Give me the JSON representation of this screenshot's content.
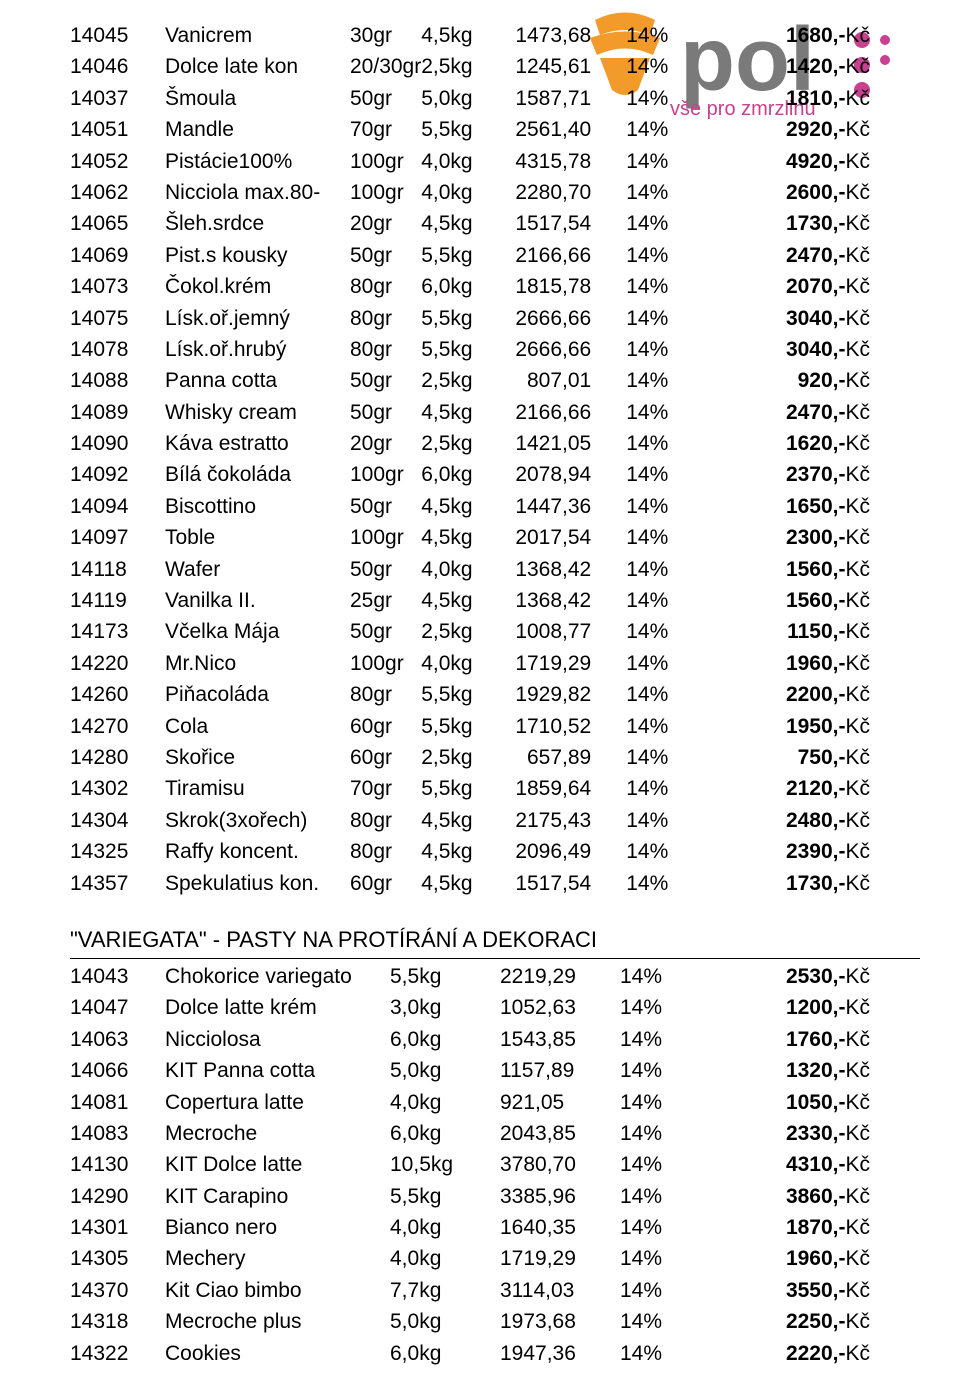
{
  "logo": {
    "text_left": "p",
    "text_mid": "o",
    "text_right": "l",
    "tagline": "vše pro zmrzlinu",
    "color_orange": "#f29a2a",
    "color_text": "#7a7a7a",
    "color_dot": "#c7418f",
    "color_tag": "#c7418f"
  },
  "currency_suffix": "Kč",
  "table1": {
    "rows": [
      {
        "code": "14045",
        "name": "Vanicrem",
        "dose": "30gr",
        "pack": "4,5kg",
        "net": "1473,68",
        "vat": "14%",
        "gross": "1680,-"
      },
      {
        "code": "14046",
        "name": "Dolce late kon",
        "dose": "20/30gr",
        "pack": "2,5kg",
        "net": "1245,61",
        "vat": "14%",
        "gross": "1420,-"
      },
      {
        "code": "14037",
        "name": "Šmoula",
        "dose": "50gr",
        "pack": "5,0kg",
        "net": "1587,71",
        "vat": "14%",
        "gross": "1810,-"
      },
      {
        "code": "14051",
        "name": "Mandle",
        "dose": "70gr",
        "pack": "5,5kg",
        "net": "2561,40",
        "vat": "14%",
        "gross": "2920,-"
      },
      {
        "code": "14052",
        "name": "Pistácie100%",
        "dose": "100gr",
        "pack": "4,0kg",
        "net": "4315,78",
        "vat": "14%",
        "gross": "4920,-"
      },
      {
        "code": "14062",
        "name": "Nicciola max.80-",
        "dose": "100gr",
        "pack": "4,0kg",
        "net": "2280,70",
        "vat": "14%",
        "gross": "2600,-"
      },
      {
        "code": "14065",
        "name": "Šleh.srdce",
        "dose": "20gr",
        "pack": "4,5kg",
        "net": "1517,54",
        "vat": "14%",
        "gross": "1730,-"
      },
      {
        "code": "14069",
        "name": "Pist.s kousky",
        "dose": "50gr",
        "pack": "5,5kg",
        "net": "2166,66",
        "vat": "14%",
        "gross": "2470,-"
      },
      {
        "code": "14073",
        "name": "Čokol.krém",
        "dose": "80gr",
        "pack": "6,0kg",
        "net": "1815,78",
        "vat": "14%",
        "gross": "2070,-"
      },
      {
        "code": "14075",
        "name": "Lísk.oř.jemný",
        "dose": "80gr",
        "pack": "5,5kg",
        "net": "2666,66",
        "vat": "14%",
        "gross": "3040,-"
      },
      {
        "code": "14078",
        "name": "Lísk.oř.hrubý",
        "dose": "80gr",
        "pack": "5,5kg",
        "net": "2666,66",
        "vat": "14%",
        "gross": "3040,-"
      },
      {
        "code": "14088",
        "name": "Panna cotta",
        "dose": "50gr",
        "pack": "2,5kg",
        "net": "807,01",
        "vat": "14%",
        "gross": "920,-"
      },
      {
        "code": "14089",
        "name": "Whisky cream",
        "dose": "50gr",
        "pack": "4,5kg",
        "net": "2166,66",
        "vat": "14%",
        "gross": "2470,-"
      },
      {
        "code": "14090",
        "name": "Káva estratto",
        "dose": "20gr",
        "pack": "2,5kg",
        "net": "1421,05",
        "vat": "14%",
        "gross": "1620,-"
      },
      {
        "code": "14092",
        "name": "Bílá čokoláda",
        "dose": "100gr",
        "pack": "6,0kg",
        "net": "2078,94",
        "vat": "14%",
        "gross": "2370,-"
      },
      {
        "code": "14094",
        "name": "Biscottino",
        "dose": "50gr",
        "pack": "4,5kg",
        "net": "1447,36",
        "vat": "14%",
        "gross": "1650,-"
      },
      {
        "code": "14097",
        "name": "Toble",
        "dose": "100gr",
        "pack": "4,5kg",
        "net": "2017,54",
        "vat": "14%",
        "gross": "2300,-"
      },
      {
        "code": "14118",
        "name": "Wafer",
        "dose": "50gr",
        "pack": "4,0kg",
        "net": "1368,42",
        "vat": "14%",
        "gross": "1560,-"
      },
      {
        "code": "14119",
        "name": "Vanilka II.",
        "dose": "25gr",
        "pack": "4,5kg",
        "net": "1368,42",
        "vat": "14%",
        "gross": "1560,-"
      },
      {
        "code": "14173",
        "name": "Včelka Mája",
        "dose": "50gr",
        "pack": "2,5kg",
        "net": "1008,77",
        "vat": "14%",
        "gross": "1150,-"
      },
      {
        "code": "14220",
        "name": "Mr.Nico",
        "dose": "100gr",
        "pack": "4,0kg",
        "net": "1719,29",
        "vat": "14%",
        "gross": "1960,-"
      },
      {
        "code": "14260",
        "name": "Piňacoláda",
        "dose": "80gr",
        "pack": "5,5kg",
        "net": "1929,82",
        "vat": "14%",
        "gross": "2200,-"
      },
      {
        "code": "14270",
        "name": "Cola",
        "dose": "60gr",
        "pack": "5,5kg",
        "net": "1710,52",
        "vat": "14%",
        "gross": "1950,-"
      },
      {
        "code": "14280",
        "name": "Skořice",
        "dose": "60gr",
        "pack": "2,5kg",
        "net": "657,89",
        "vat": "14%",
        "gross": "750,-"
      },
      {
        "code": "14302",
        "name": "Tiramisu",
        "dose": "70gr",
        "pack": "5,5kg",
        "net": "1859,64",
        "vat": "14%",
        "gross": "2120,-"
      },
      {
        "code": "14304",
        "name": "Skrok(3xořech)",
        "dose": "80gr",
        "pack": "4,5kg",
        "net": "2175,43",
        "vat": "14%",
        "gross": "2480,-"
      },
      {
        "code": "14325",
        "name": "Raffy koncent.",
        "dose": "80gr",
        "pack": "4,5kg",
        "net": "2096,49",
        "vat": "14%",
        "gross": "2390,-"
      },
      {
        "code": "14357",
        "name": "Spekulatius kon.",
        "dose": "60gr",
        "pack": "4,5kg",
        "net": "1517,54",
        "vat": "14%",
        "gross": "1730,-"
      }
    ]
  },
  "section2_title": "\"VARIEGATA\" - PASTY NA PROTÍRÁNÍ A DEKORACI",
  "table2": {
    "rows": [
      {
        "code": "14043",
        "name": "Chokorice variegato",
        "pack": "5,5kg",
        "net": "2219,29",
        "vat": "14%",
        "gross": "2530,-"
      },
      {
        "code": "14047",
        "name": "Dolce latte krém",
        "pack": "3,0kg",
        "net": "1052,63",
        "vat": "14%",
        "gross": "1200,-"
      },
      {
        "code": "14063",
        "name": "Nicciolosa",
        "pack": "6,0kg",
        "net": "1543,85",
        "vat": "14%",
        "gross": "1760,-"
      },
      {
        "code": "14066",
        "name": "KIT Panna cotta",
        "pack": "5,0kg",
        "net": "1157,89",
        "vat": "14%",
        "gross": "1320,-"
      },
      {
        "code": "14081",
        "name": "Copertura latte",
        "pack": "4,0kg",
        "net": "921,05",
        "vat": "14%",
        "gross": "1050,-"
      },
      {
        "code": "14083",
        "name": "Mecroche",
        "pack": "6,0kg",
        "net": "2043,85",
        "vat": "14%",
        "gross": "2330,-"
      },
      {
        "code": "14130",
        "name": "KIT Dolce latte",
        "pack": "10,5kg",
        "net": "3780,70",
        "vat": "14%",
        "gross": "4310,-"
      },
      {
        "code": "14290",
        "name": "KIT Carapino",
        "pack": "5,5kg",
        "net": "3385,96",
        "vat": "14%",
        "gross": "3860,-"
      },
      {
        "code": "14301",
        "name": "Bianco nero",
        "pack": "4,0kg",
        "net": "1640,35",
        "vat": "14%",
        "gross": "1870,-"
      },
      {
        "code": "14305",
        "name": "Mechery",
        "pack": "4,0kg",
        "net": "1719,29",
        "vat": "14%",
        "gross": "1960,-"
      },
      {
        "code": "14370",
        "name": "Kit Ciao bimbo",
        "pack": "7,7kg",
        "net": "3114,03",
        "vat": "14%",
        "gross": "3550,-"
      },
      {
        "code": "14318",
        "name": "Mecroche plus",
        "pack": "5,0kg",
        "net": "1973,68",
        "vat": "14%",
        "gross": "2250,-"
      },
      {
        "code": "14322",
        "name": "Cookies",
        "pack": "6,0kg",
        "net": "1947,36",
        "vat": "14%",
        "gross": "2220,-"
      }
    ]
  }
}
